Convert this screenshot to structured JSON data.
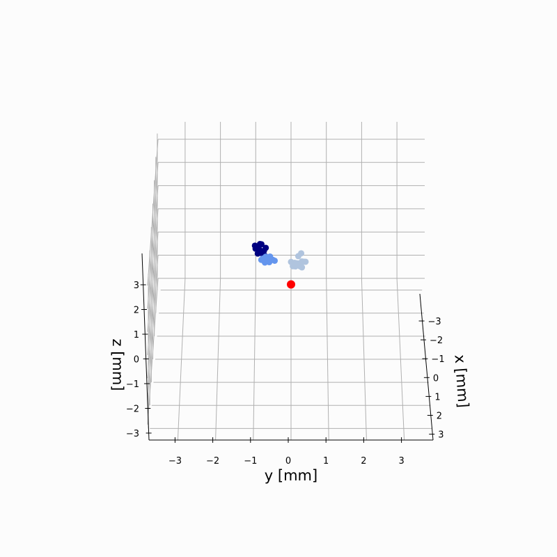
{
  "chart_data": {
    "type": "scatter",
    "projection": "3d",
    "title": "",
    "xlabel": "y [mm]",
    "zlabel": "z [mm]",
    "depthlabel": "x [mm]",
    "y_ticks": [
      "−3",
      "−2",
      "−1",
      "0",
      "1",
      "2",
      "3"
    ],
    "z_ticks": [
      "−3",
      "−2",
      "−1",
      "0",
      "1",
      "2",
      "3"
    ],
    "x_ticks": [
      "−3",
      "−2",
      "−1",
      "0",
      "1",
      "2",
      "3"
    ],
    "y_range": [
      -3.8,
      3.8
    ],
    "z_range": [
      -3.2,
      3.3
    ],
    "x_range": [
      -3.5,
      3.5
    ],
    "grid": true,
    "series": [
      {
        "color": "#000080",
        "points": [
          [
            -1.0,
            -1.3,
            0.45
          ],
          [
            -0.95,
            -1.2,
            0.5
          ],
          [
            -0.9,
            -1.25,
            0.4
          ],
          [
            -0.85,
            -1.1,
            0.42
          ],
          [
            -0.98,
            -1.05,
            0.55
          ],
          [
            -0.8,
            -1.15,
            0.35
          ],
          [
            -0.88,
            -0.95,
            0.48
          ],
          [
            -0.75,
            -1.0,
            0.5
          ],
          [
            -0.82,
            -1.2,
            0.6
          ],
          [
            -0.92,
            -1.1,
            0.3
          ],
          [
            -0.72,
            -0.9,
            0.38
          ],
          [
            -0.86,
            -1.3,
            0.52
          ],
          [
            -0.78,
            -1.05,
            0.32
          ],
          [
            -0.7,
            -1.2,
            0.45
          ]
        ]
      },
      {
        "color": "#6495ed",
        "points": [
          [
            -0.78,
            -0.7,
            0.45
          ],
          [
            -0.7,
            -0.8,
            0.4
          ],
          [
            -0.65,
            -0.6,
            0.5
          ],
          [
            -0.82,
            -0.75,
            0.35
          ],
          [
            -0.6,
            -0.7,
            0.3
          ],
          [
            -0.72,
            -0.55,
            0.42
          ],
          [
            -0.55,
            -0.65,
            0.48
          ],
          [
            -0.68,
            -0.85,
            0.25
          ],
          [
            -0.5,
            -0.75,
            0.35
          ],
          [
            -0.75,
            -0.9,
            0.2
          ],
          [
            -0.62,
            -0.5,
            0.55
          ],
          [
            -0.58,
            -0.85,
            0.4
          ],
          [
            -0.45,
            -0.6,
            0.45
          ],
          [
            -0.7,
            -0.95,
            0.3
          ]
        ]
      },
      {
        "color": "#b0c4de",
        "points": [
          [
            0.0,
            -0.6,
            0.4
          ],
          [
            0.1,
            -0.5,
            0.45
          ],
          [
            0.2,
            -0.55,
            0.38
          ],
          [
            0.3,
            -0.6,
            0.42
          ],
          [
            0.35,
            -0.5,
            0.5
          ],
          [
            0.25,
            -0.45,
            0.35
          ],
          [
            0.15,
            -0.65,
            0.3
          ],
          [
            0.4,
            -0.55,
            0.45
          ],
          [
            0.05,
            -0.4,
            0.4
          ],
          [
            0.2,
            -0.7,
            0.55
          ],
          [
            0.3,
            -0.4,
            0.35
          ],
          [
            0.12,
            -0.3,
            0.48
          ],
          [
            0.28,
            -1.0,
            0.4
          ]
        ]
      },
      {
        "color": "#ff0000",
        "marker_size": "large",
        "points": [
          [
            0.0,
            0.0,
            0.0
          ]
        ]
      }
    ]
  }
}
